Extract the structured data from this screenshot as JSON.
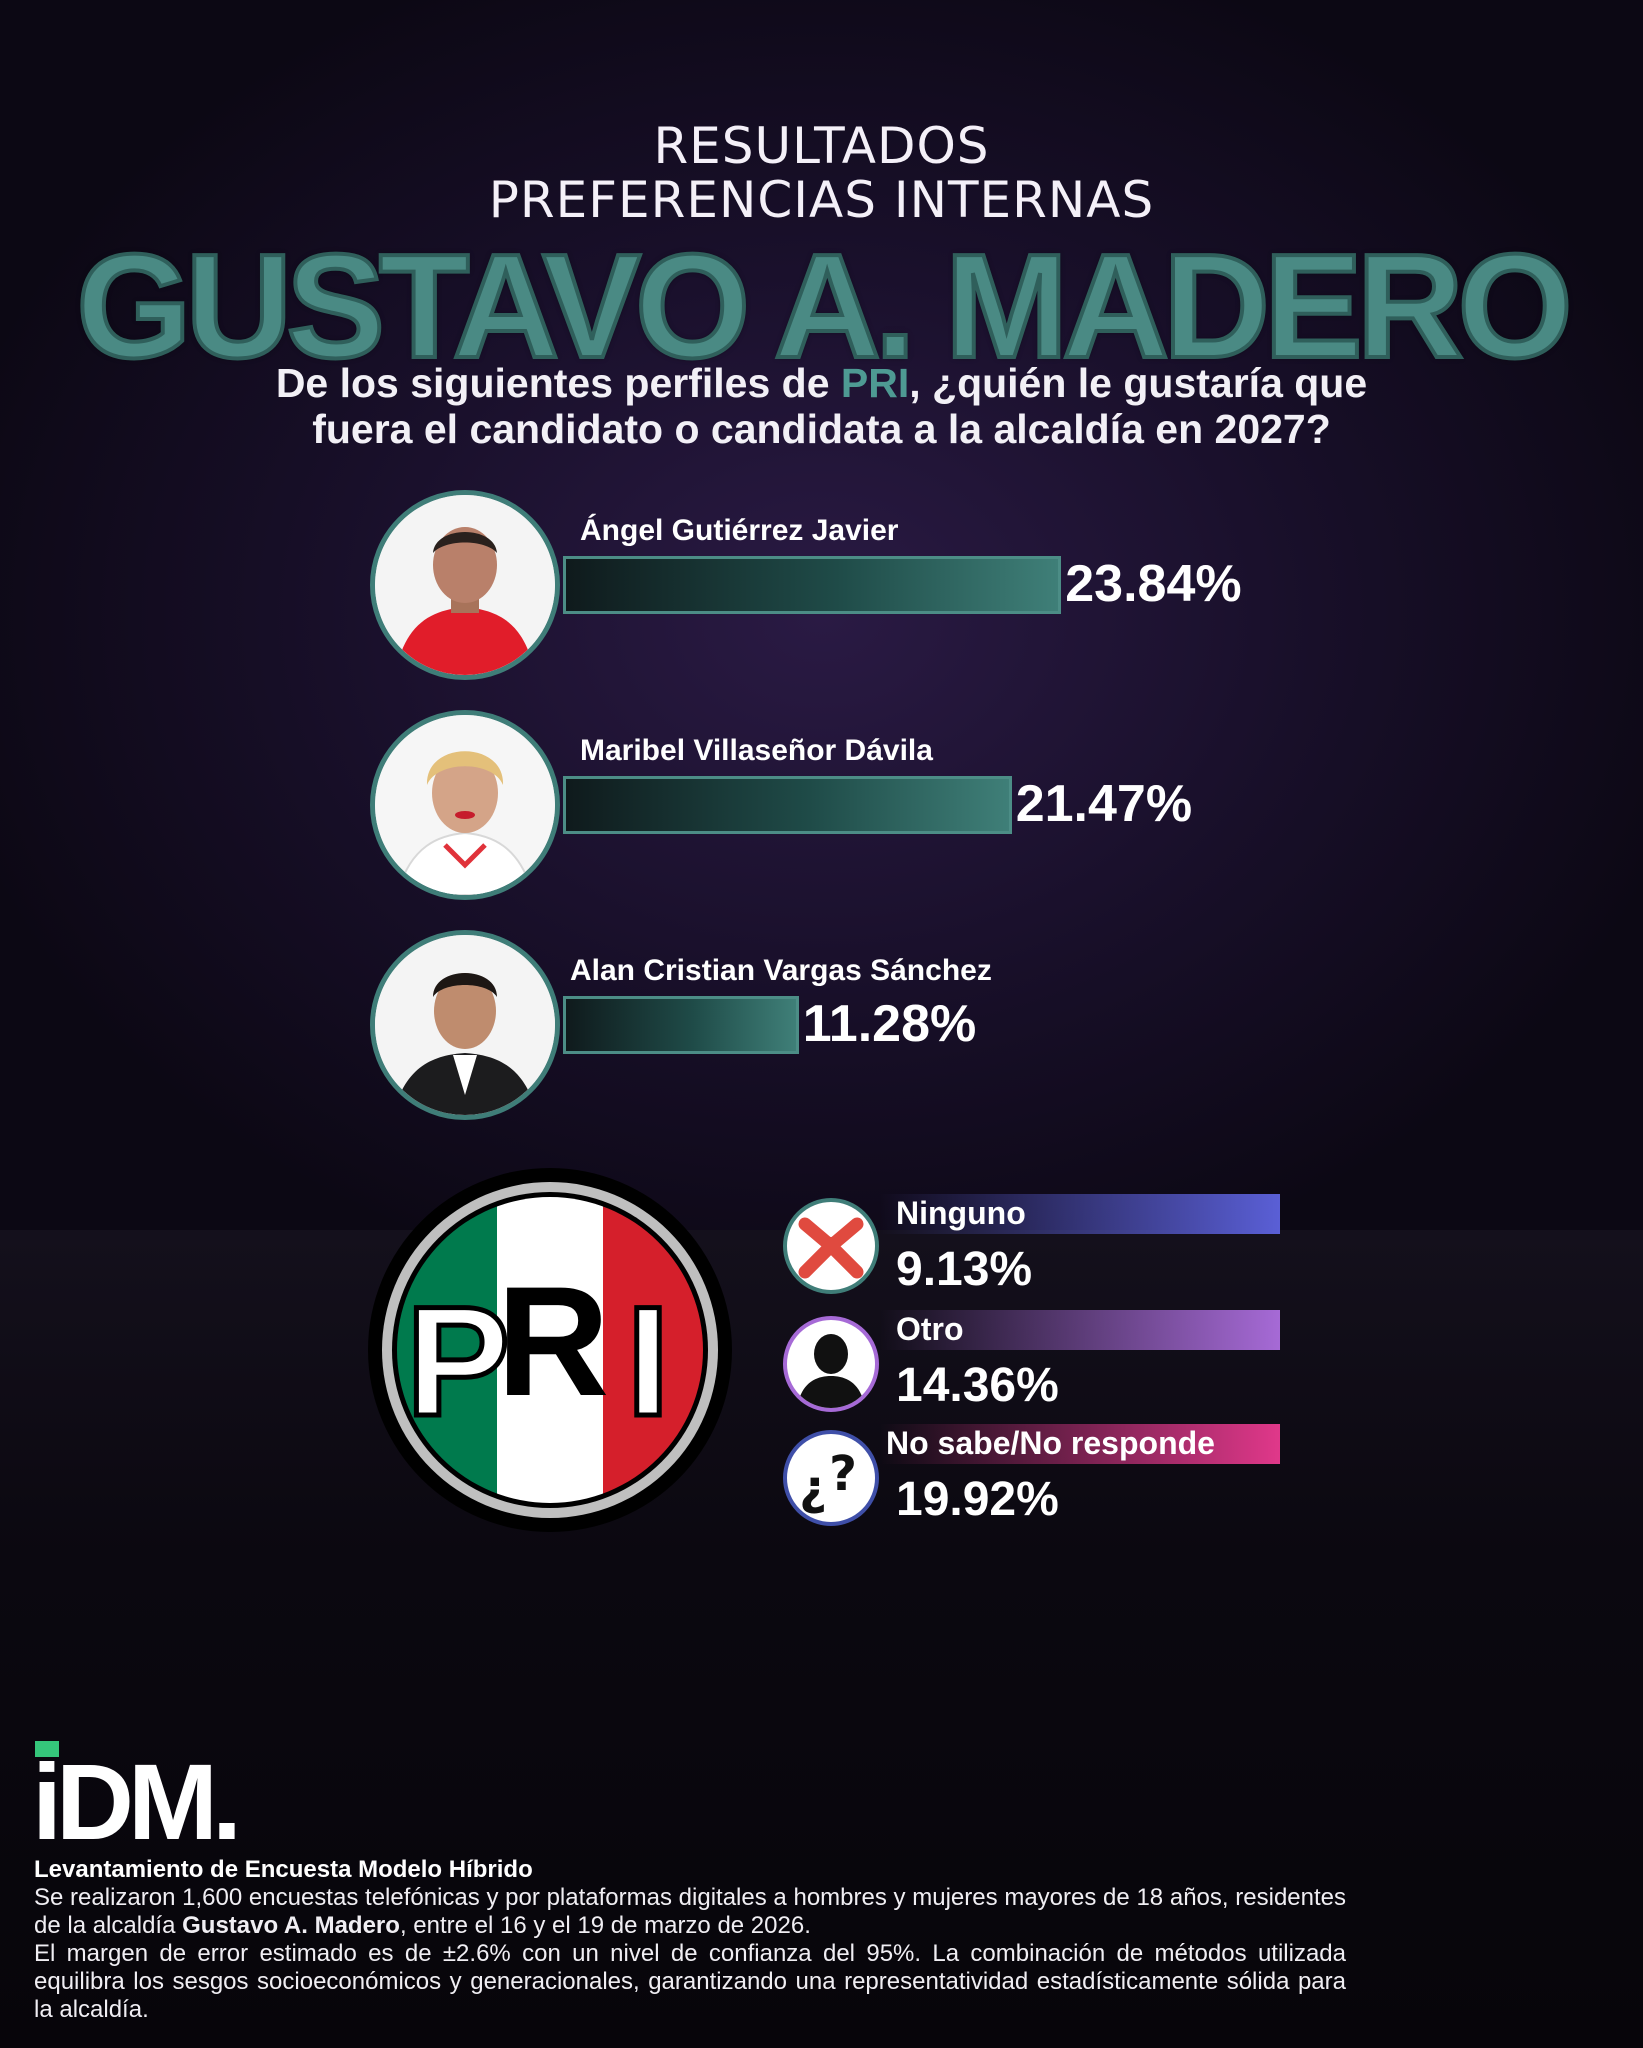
{
  "header": {
    "line1": "RESULTADOS",
    "line2": "PREFERENCIAS INTERNAS",
    "title": "GUSTAVO A. MADERO"
  },
  "question": {
    "line1_a": "De los siguientes perfiles de ",
    "line1_party": "PRI",
    "line1_b": ", ¿quién le gustaría que",
    "line2": "fuera el candidato o candidata a la alcaldía en 2027?"
  },
  "chart_data": {
    "type": "bar",
    "categories": [
      "Ángel Gutiérrez Javier",
      "Maribel Villaseñor Dávila",
      "Alan Cristian Vargas Sánchez"
    ],
    "values": [
      23.84,
      21.47,
      11.28
    ],
    "value_labels": [
      "23.84%",
      "21.47%",
      "11.28%"
    ],
    "title": "",
    "xlabel": "",
    "ylabel": "",
    "unit": "%",
    "other_options": [
      {
        "label": "Ninguno",
        "value": 9.13,
        "value_label": "9.13%",
        "icon": "x-mark-icon",
        "color": "#5a5fd6"
      },
      {
        "label": "Otro",
        "value": 14.36,
        "value_label": "14.36%",
        "icon": "person-silhouette-icon",
        "color": "#a66ad6"
      },
      {
        "label": "No sabe/No responde",
        "value": 19.92,
        "value_label": "19.92%",
        "icon": "question-marks-icon",
        "color": "#e0388a"
      }
    ]
  },
  "party_logo": {
    "text": "PRI",
    "colors": [
      "#006847",
      "#ffffff",
      "#ce1126"
    ]
  },
  "footer": {
    "brand": "iDM.",
    "title": "Levantamiento de Encuesta Modelo Híbrido",
    "para1_a": "Se realizaron 1,600 encuestas telefónicas y por plataformas digitales a hombres y mujeres mayores de 18 años, residentes de la alcaldía ",
    "para1_bold": "Gustavo A. Madero",
    "para1_b": ", entre el 16 y el 19 de marzo de 2026.",
    "para2": "El margen de error estimado es de ±2.6% con un nivel de confianza del 95%. La combinación de métodos utilizada equilibra los sesgos socioeconómicos y generacionales, garantizando una representatividad estadísticamente sólida para la alcaldía."
  }
}
